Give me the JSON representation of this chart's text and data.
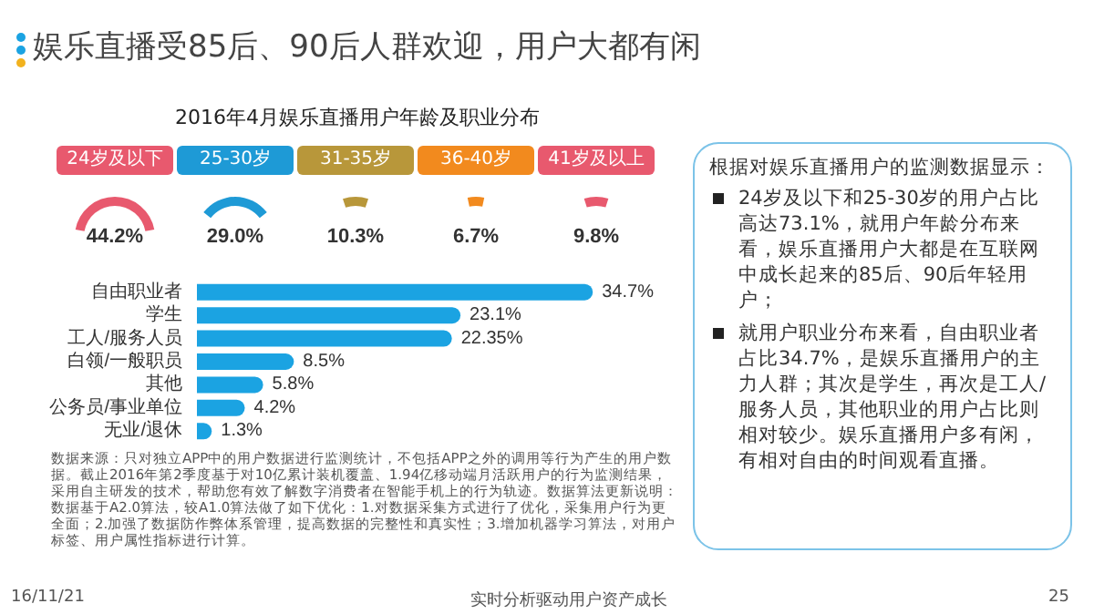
{
  "chart_data": [
    {
      "type": "other",
      "title": "娱乐直播受85后、90后人群欢迎，用户大都有闲",
      "subtitle": "2016年4月娱乐直播用户年龄及职业分布",
      "categories": [
        "24岁及以下",
        "25-30岁",
        "31-35岁",
        "36-40岁",
        "41岁及以上"
      ],
      "values": [
        44.2,
        29.0,
        10.3,
        6.7,
        9.8
      ],
      "value_labels": [
        "44.2%",
        "29.0%",
        "10.3%",
        "6.7%",
        "9.8%"
      ],
      "colors": [
        "#e8596e",
        "#1e9ad6",
        "#b8973a",
        "#f28a1e",
        "#e8596e"
      ]
    },
    {
      "type": "bar",
      "orientation": "horizontal",
      "categories": [
        "自由职业者",
        "学生",
        "工人/服务人员",
        "白领/一般职员",
        "其他",
        "公务员/事业单位",
        "无业/退休"
      ],
      "values": [
        34.7,
        23.1,
        22.35,
        8.5,
        5.8,
        4.2,
        1.3
      ],
      "value_labels": [
        "34.7%",
        "23.1%",
        "22.35%",
        "8.5%",
        "5.8%",
        "4.2%",
        "1.3%"
      ],
      "color": "#1ba3e2",
      "annotations": [
        "数据来源：只对独立APP中的用户数据进行监测统计，不包括APP之外的调用等行为产生的用户数据。截止2016年第2季度基于对10亿累计装机覆盖、1.94亿移动端月活跃用户的行为监测结果，采用自主研发的技术，帮助您有效了解数字消费者在智能手机上的行为轨迹。数据算法更新说明：数据基于A2.0算法，较A1.0算法做了如下优化：1.对数据采集方式进行了优化，采集用户行为更全面；2.加强了数据防作弊体系管理，提高数据的完整性和真实性；3.增加机器学习算法，对用户标签、用户属性指标进行计算。",
        "16/11/21",
        "实时分析驱动用户资产成长",
        "25"
      ]
    },
    {
      "type": "other",
      "annotations": [
        "根据对娱乐直播用户的监测数据显示：",
        "24岁及以下和25-30岁的用户占比高达73.1%，就用户年龄分布来看，娱乐直播用户大都是在互联网中成长起来的85后、90后年轻用户；",
        "就用户职业分布来看，自由职业者占比34.7%，是娱乐直播用户的主力人群；其次是学生，再次是工人/服务人员，其他职业的用户占比则相对较少。娱乐直播用户多有闲，有相对自由的时间观看直播。"
      ]
    }
  ]
}
